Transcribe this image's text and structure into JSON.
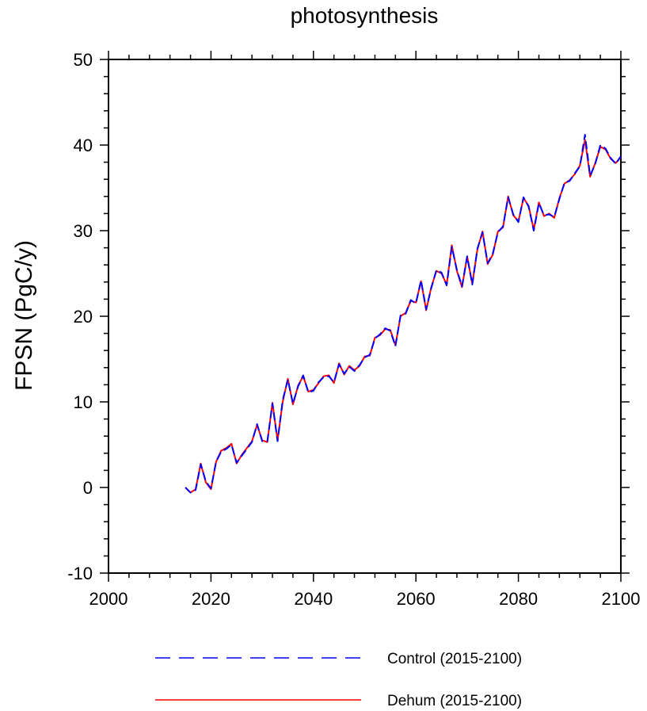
{
  "chart_data": {
    "type": "line",
    "title": "photosynthesis",
    "xlabel": "",
    "ylabel": "FPSN  (PgC/y)",
    "xlim": [
      2000,
      2100
    ],
    "ylim": [
      -10,
      50
    ],
    "xticks": [
      2000,
      2020,
      2040,
      2060,
      2080,
      2100
    ],
    "xtick_labels": [
      "2000",
      "2020",
      "2040",
      "2060",
      "2080",
      "2100"
    ],
    "yticks": [
      -10,
      0,
      10,
      20,
      30,
      40,
      50
    ],
    "ytick_labels": [
      "-10",
      "0",
      "10",
      "20",
      "30",
      "40",
      "50"
    ],
    "grid": false,
    "legend_position": "bottom",
    "x": [
      2015,
      2016,
      2017,
      2018,
      2019,
      2020,
      2021,
      2022,
      2023,
      2024,
      2025,
      2026,
      2027,
      2028,
      2029,
      2030,
      2031,
      2032,
      2033,
      2034,
      2035,
      2036,
      2037,
      2038,
      2039,
      2040,
      2041,
      2042,
      2043,
      2044,
      2045,
      2046,
      2047,
      2048,
      2049,
      2050,
      2051,
      2052,
      2053,
      2054,
      2055,
      2056,
      2057,
      2058,
      2059,
      2060,
      2061,
      2062,
      2063,
      2064,
      2065,
      2066,
      2067,
      2068,
      2069,
      2070,
      2071,
      2072,
      2073,
      2074,
      2075,
      2076,
      2077,
      2078,
      2079,
      2080,
      2081,
      2082,
      2083,
      2084,
      2085,
      2086,
      2087,
      2088,
      2089,
      2090,
      2091,
      2092,
      2093,
      2094,
      2095,
      2096,
      2097,
      2098,
      2099,
      2100
    ],
    "series": [
      {
        "name": "Control (2015-2100)",
        "color": "#0000ff",
        "style": "dashed",
        "values": [
          0.0,
          -0.6,
          -0.3,
          2.7,
          0.7,
          -0.1,
          3.0,
          4.2,
          4.5,
          5.0,
          2.9,
          3.7,
          4.5,
          5.3,
          7.4,
          5.4,
          5.4,
          9.8,
          5.4,
          10.2,
          12.6,
          9.8,
          11.8,
          13.1,
          11.1,
          11.3,
          12.3,
          12.9,
          13.0,
          12.3,
          14.4,
          13.3,
          14.1,
          13.6,
          14.3,
          15.2,
          15.5,
          17.4,
          17.9,
          18.6,
          18.3,
          16.5,
          20.1,
          20.3,
          21.9,
          21.5,
          24.2,
          20.8,
          23.3,
          25.4,
          25.1,
          23.6,
          28.1,
          25.4,
          23.5,
          27.0,
          23.7,
          27.9,
          29.8,
          26.2,
          27.3,
          29.8,
          30.5,
          33.9,
          31.9,
          31.0,
          33.9,
          32.8,
          30.0,
          33.2,
          31.8,
          31.9,
          31.6,
          33.7,
          35.6,
          35.8,
          36.7,
          37.5,
          41.2,
          36.4,
          37.8,
          40.0,
          39.6,
          38.5,
          37.8,
          38.7
        ]
      },
      {
        "name": "Dehum (2015-2100)",
        "color": "#ff0000",
        "style": "solid",
        "values": [
          0.0,
          -0.6,
          -0.2,
          2.8,
          0.6,
          -0.2,
          3.0,
          4.3,
          4.6,
          5.1,
          2.8,
          3.8,
          4.6,
          5.4,
          7.3,
          5.5,
          5.3,
          9.9,
          5.5,
          10.0,
          12.7,
          9.7,
          11.9,
          13.0,
          11.2,
          11.4,
          12.2,
          13.0,
          13.1,
          12.2,
          14.5,
          13.2,
          14.2,
          13.7,
          14.2,
          15.3,
          15.4,
          17.5,
          17.8,
          18.5,
          18.4,
          16.6,
          20.0,
          20.4,
          21.8,
          21.6,
          24.1,
          20.7,
          23.4,
          25.3,
          25.0,
          23.7,
          28.3,
          25.3,
          23.4,
          27.0,
          23.8,
          27.8,
          29.9,
          26.1,
          27.2,
          29.9,
          30.4,
          34.0,
          31.8,
          31.1,
          33.8,
          32.9,
          30.1,
          33.3,
          31.7,
          32.0,
          31.5,
          33.8,
          35.5,
          35.9,
          36.6,
          37.6,
          40.6,
          36.3,
          37.9,
          39.8,
          39.5,
          38.4,
          37.9,
          38.6
        ]
      }
    ]
  }
}
